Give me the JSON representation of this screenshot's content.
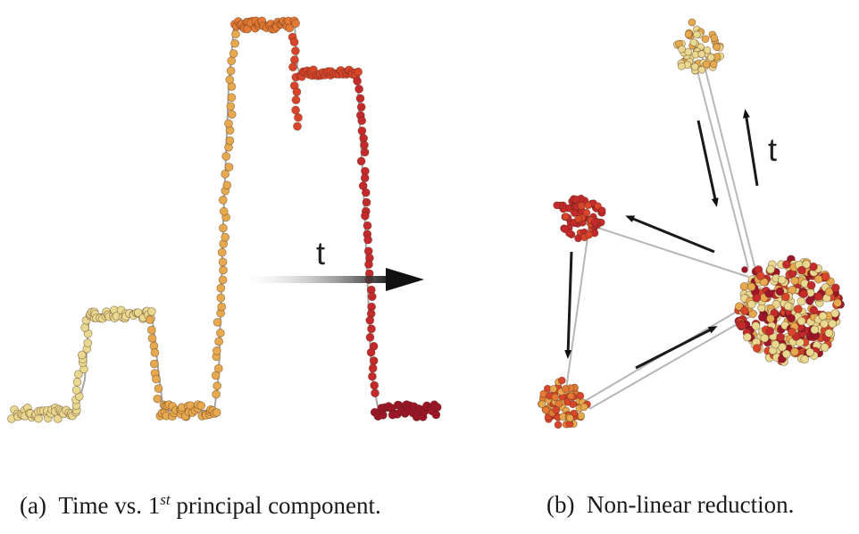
{
  "panel_a": {
    "caption": {
      "prefix": "(a)",
      "text_before_sup": "Time vs. 1",
      "sup": "st",
      "text_after_sup": " principal component."
    },
    "arrow_label": "t"
  },
  "panel_b": {
    "caption": {
      "prefix": "(b)",
      "text": "Non-linear reduction."
    },
    "arrow_label": "t"
  },
  "colors": {
    "yellow": "#e9d88f",
    "light_orange": "#e7a94d",
    "orange": "#e27a35",
    "red_orange": "#d8452b",
    "red": "#c42a2c",
    "dark_red": "#9d1528",
    "line": "#9a9a9a",
    "arrow": "#1a1a1a"
  }
}
